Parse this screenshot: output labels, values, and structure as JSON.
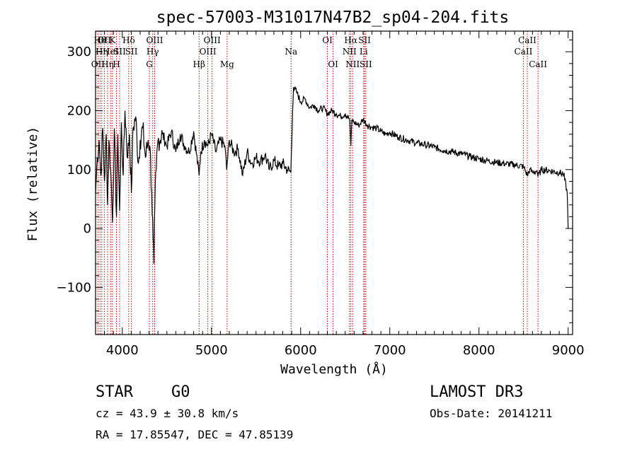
{
  "chart_data": {
    "type": "line",
    "title": "spec-57003-M31017N47B2_sp04-204.fits",
    "xlabel": "Wavelength (Å)",
    "ylabel": "Flux (relative)",
    "xlim": [
      3700,
      9050
    ],
    "ylim": [
      -180,
      335
    ],
    "xticks": [
      4000,
      5000,
      6000,
      7000,
      8000,
      9000
    ],
    "xtick_labels": [
      "4000",
      "5000",
      "6000",
      "7000",
      "8000",
      "9000"
    ],
    "yticks": [
      -100,
      0,
      100,
      200,
      300
    ],
    "ytick_labels": [
      "−100",
      "0",
      "100",
      "200",
      "300"
    ],
    "grid": false,
    "series": [
      {
        "name": "spectrum",
        "anchors": [
          [
            3700,
            60
          ],
          [
            3720,
            120
          ],
          [
            3740,
            150
          ],
          [
            3760,
            90
          ],
          [
            3780,
            170
          ],
          [
            3800,
            80
          ],
          [
            3820,
            160
          ],
          [
            3835,
            40
          ],
          [
            3850,
            150
          ],
          [
            3870,
            100
          ],
          [
            3890,
            10
          ],
          [
            3910,
            170
          ],
          [
            3935,
            20
          ],
          [
            3950,
            160
          ],
          [
            3970,
            30
          ],
          [
            3990,
            180
          ],
          [
            4010,
            90
          ],
          [
            4030,
            200
          ],
          [
            4060,
            120
          ],
          [
            4080,
            160
          ],
          [
            4102,
            60
          ],
          [
            4120,
            170
          ],
          [
            4150,
            190
          ],
          [
            4180,
            110
          ],
          [
            4200,
            150
          ],
          [
            4230,
            170
          ],
          [
            4260,
            120
          ],
          [
            4290,
            150
          ],
          [
            4310,
            140
          ],
          [
            4330,
            60
          ],
          [
            4345,
            -20
          ],
          [
            4355,
            -60
          ],
          [
            4365,
            40
          ],
          [
            4380,
            100
          ],
          [
            4400,
            150
          ],
          [
            4450,
            160
          ],
          [
            4500,
            140
          ],
          [
            4550,
            165
          ],
          [
            4600,
            130
          ],
          [
            4650,
            160
          ],
          [
            4700,
            140
          ],
          [
            4750,
            130
          ],
          [
            4800,
            165
          ],
          [
            4861,
            90
          ],
          [
            4880,
            130
          ],
          [
            4920,
            150
          ],
          [
            4960,
            140
          ],
          [
            5000,
            160
          ],
          [
            5050,
            130
          ],
          [
            5100,
            150
          ],
          [
            5150,
            140
          ],
          [
            5170,
            100
          ],
          [
            5200,
            150
          ],
          [
            5250,
            130
          ],
          [
            5300,
            135
          ],
          [
            5350,
            90
          ],
          [
            5400,
            130
          ],
          [
            5450,
            110
          ],
          [
            5500,
            120
          ],
          [
            5550,
            115
          ],
          [
            5600,
            125
          ],
          [
            5650,
            100
          ],
          [
            5700,
            115
          ],
          [
            5750,
            105
          ],
          [
            5800,
            110
          ],
          [
            5850,
            100
          ],
          [
            5890,
            95
          ],
          [
            5895,
            120
          ],
          [
            5905,
            170
          ],
          [
            5910,
            200
          ],
          [
            5920,
            240
          ],
          [
            5960,
            230
          ],
          [
            6000,
            215
          ],
          [
            6050,
            220
          ],
          [
            6100,
            205
          ],
          [
            6150,
            210
          ],
          [
            6200,
            200
          ],
          [
            6250,
            205
          ],
          [
            6300,
            195
          ],
          [
            6350,
            200
          ],
          [
            6400,
            195
          ],
          [
            6450,
            190
          ],
          [
            6500,
            195
          ],
          [
            6550,
            185
          ],
          [
            6563,
            140
          ],
          [
            6575,
            185
          ],
          [
            6600,
            180
          ],
          [
            6650,
            175
          ],
          [
            6700,
            185
          ],
          [
            6750,
            175
          ],
          [
            6800,
            172
          ],
          [
            6850,
            170
          ],
          [
            6900,
            165
          ],
          [
            6950,
            160
          ],
          [
            7000,
            163
          ],
          [
            7100,
            155
          ],
          [
            7200,
            150
          ],
          [
            7300,
            145
          ],
          [
            7400,
            142
          ],
          [
            7500,
            138
          ],
          [
            7600,
            133
          ],
          [
            7700,
            130
          ],
          [
            7800,
            127
          ],
          [
            7900,
            122
          ],
          [
            8000,
            118
          ],
          [
            8100,
            115
          ],
          [
            8200,
            112
          ],
          [
            8300,
            110
          ],
          [
            8400,
            108
          ],
          [
            8500,
            105
          ],
          [
            8542,
            90
          ],
          [
            8570,
            100
          ],
          [
            8600,
            95
          ],
          [
            8650,
            98
          ],
          [
            8662,
            88
          ],
          [
            8700,
            100
          ],
          [
            8800,
            98
          ],
          [
            8900,
            95
          ],
          [
            8950,
            92
          ],
          [
            8990,
            60
          ],
          [
            9000,
            0
          ]
        ]
      }
    ],
    "lines": [
      {
        "w": 3727,
        "label": "OII",
        "row": 3
      },
      {
        "w": 3750,
        "label": "Hθ",
        "row": 1
      },
      {
        "w": 3770,
        "label": "Hη",
        "row": 2
      },
      {
        "w": 3798,
        "label": "OII",
        "row": 1
      },
      {
        "w": 3835,
        "label": "Hη",
        "row": 3
      },
      {
        "w": 3869,
        "label": "HeI",
        "row": 2
      },
      {
        "w": 3889,
        "label": "K",
        "row": 1
      },
      {
        "w": 3934,
        "label": "H",
        "row": 3
      },
      {
        "w": 3970,
        "label": "SII",
        "row": 2
      },
      {
        "w": 4072,
        "label": "Hδ",
        "row": 1
      },
      {
        "w": 4102,
        "label": "SII",
        "row": 2
      },
      {
        "w": 4304,
        "label": "G",
        "row": 3
      },
      {
        "w": 4341,
        "label": "Hγ",
        "row": 2
      },
      {
        "w": 4363,
        "label": "OIII",
        "row": 1
      },
      {
        "w": 4861,
        "label": "Hβ",
        "row": 3
      },
      {
        "w": 4959,
        "label": "OIII",
        "row": 2
      },
      {
        "w": 5007,
        "label": "OIII",
        "row": 1
      },
      {
        "w": 5175,
        "label": "Mg",
        "row": 3
      },
      {
        "w": 5893,
        "label": "Na",
        "row": 2
      },
      {
        "w": 6300,
        "label": "OI",
        "row": 1
      },
      {
        "w": 6364,
        "label": "OI",
        "row": 3
      },
      {
        "w": 6548,
        "label": "NII",
        "row": 2
      },
      {
        "w": 6563,
        "label": "Hα",
        "row": 1
      },
      {
        "w": 6583,
        "label": "NII",
        "row": 3
      },
      {
        "w": 6707,
        "label": "Li",
        "row": 2
      },
      {
        "w": 6717,
        "label": "SII",
        "row": 1
      },
      {
        "w": 6731,
        "label": "SII",
        "row": 3
      },
      {
        "w": 8498,
        "label": "CaII",
        "row": 2
      },
      {
        "w": 8542,
        "label": "CaII",
        "row": 1
      },
      {
        "w": 8662,
        "label": "CaII",
        "row": 3
      }
    ]
  },
  "info": {
    "class_label": "STAR",
    "subclass_label": "G0",
    "survey": "LAMOST DR3",
    "cz": "cz = 43.9 ± 30.8 km/s",
    "obs_date": "Obs-Date: 20141211",
    "coords": "RA =  17.85547, DEC =  47.85139"
  },
  "colors": {
    "axis": "#000000",
    "spectrum": "#000000",
    "line_marker": "#cc0000"
  }
}
